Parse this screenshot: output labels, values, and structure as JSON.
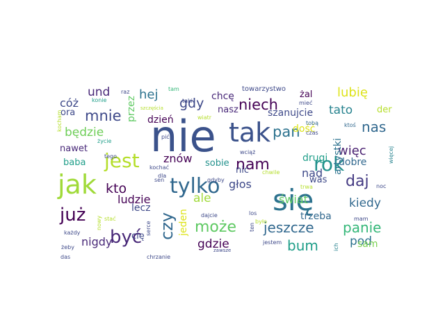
{
  "words": [
    {
      "text": "nie",
      "color": "#3b528b"
    },
    {
      "text": "się",
      "color": "#2c728e"
    },
    {
      "text": "tak",
      "color": "#3b528b"
    },
    {
      "text": "jak",
      "color": "#a0da39"
    },
    {
      "text": "rok",
      "color": "#21918c"
    },
    {
      "text": "tylko",
      "color": "#31688e"
    },
    {
      "text": "nam",
      "color": "#440154"
    },
    {
      "text": "jest",
      "color": "#b5de2b"
    },
    {
      "text": "już",
      "color": "#440154"
    },
    {
      "text": "być",
      "color": "#482878"
    },
    {
      "text": "może",
      "color": "#5ec962"
    },
    {
      "text": "czy",
      "color": "#31688e"
    },
    {
      "text": "niech",
      "color": "#440154"
    },
    {
      "text": "mnie",
      "color": "#3e4989"
    },
    {
      "text": "daj",
      "color": "#443a83"
    },
    {
      "text": "panie",
      "color": "#35b779"
    },
    {
      "text": "jeszcze",
      "color": "#31688e"
    },
    {
      "text": "bum",
      "color": "#1f9e89"
    },
    {
      "text": "pan",
      "color": "#2c728e"
    },
    {
      "text": "kto",
      "color": "#440154"
    },
    {
      "text": "nas",
      "color": "#31688e"
    },
    {
      "text": "lubię",
      "color": "#dde318"
    },
    {
      "text": "gdy",
      "color": "#3e4989"
    },
    {
      "text": "hej",
      "color": "#2c728e"
    },
    {
      "text": "und",
      "color": "#482878"
    },
    {
      "text": "tato",
      "color": "#26828e"
    },
    {
      "text": "głos",
      "color": "#3e4989"
    },
    {
      "text": "świat",
      "color": "#5ec962"
    },
    {
      "text": "kiedy",
      "color": "#31688e"
    },
    {
      "text": "gdzie",
      "color": "#440154"
    },
    {
      "text": "pod",
      "color": "#2c728e"
    },
    {
      "text": "ludzie",
      "color": "#440154"
    },
    {
      "text": "nigdy",
      "color": "#482878"
    },
    {
      "text": "ale",
      "color": "#a0da39"
    },
    {
      "text": "więc",
      "color": "#481f70"
    },
    {
      "text": "będzie",
      "color": "#6ece58"
    },
    {
      "text": "znów",
      "color": "#440154"
    },
    {
      "text": "cóż",
      "color": "#3e4989"
    },
    {
      "text": "chcę",
      "color": "#482878"
    },
    {
      "text": "nad",
      "color": "#3e4989"
    },
    {
      "text": "sam",
      "color": "#7ad151"
    },
    {
      "text": "dobre",
      "color": "#31688e"
    },
    {
      "text": "szanujcie",
      "color": "#3e4989"
    },
    {
      "text": "jeden",
      "color": "#dde318"
    },
    {
      "text": "dzień",
      "color": "#440154"
    },
    {
      "text": "lecz",
      "color": "#3e4989"
    },
    {
      "text": "żal",
      "color": "#440154"
    },
    {
      "text": "nasz",
      "color": "#482878"
    },
    {
      "text": "drugi",
      "color": "#1f9e89"
    },
    {
      "text": "artystki",
      "color": "#2c728e"
    },
    {
      "text": "trzeba",
      "color": "#31688e"
    },
    {
      "text": "przez",
      "color": "#5ec962"
    },
    {
      "text": "dość",
      "color": "#dde318"
    },
    {
      "text": "nawet",
      "color": "#482878"
    },
    {
      "text": "baba",
      "color": "#1f9e89"
    },
    {
      "text": "sobie",
      "color": "#21918c"
    },
    {
      "text": "ora",
      "color": "#3e4989"
    },
    {
      "text": "nic",
      "color": "#3e4989"
    },
    {
      "text": "der",
      "color": "#b5de2b"
    },
    {
      "text": "was",
      "color": "#3e4989"
    },
    {
      "text": "cię",
      "color": "#3e4989"
    },
    {
      "text": "towarzystwo",
      "color": "#3e4989"
    },
    {
      "text": "kocham",
      "color": "#b5de2b"
    },
    {
      "text": "raz",
      "color": "#3e4989"
    },
    {
      "text": "konie",
      "color": "#1f9e89"
    },
    {
      "text": "tam",
      "color": "#35b779"
    },
    {
      "text": "taki",
      "color": "#3e4989"
    },
    {
      "text": "szczęścia",
      "color": "#b5de2b"
    },
    {
      "text": "wiatr",
      "color": "#b5de2b"
    },
    {
      "text": "mieć",
      "color": "#3e4989"
    },
    {
      "text": "tobą",
      "color": "#31688e"
    },
    {
      "text": "ktoś",
      "color": "#31688e"
    },
    {
      "text": "czas",
      "color": "#3e4989"
    },
    {
      "text": "pić",
      "color": "#3e4989"
    },
    {
      "text": "życie",
      "color": "#1f9e89"
    },
    {
      "text": "tego",
      "color": "#3e4989"
    },
    {
      "text": "kochać",
      "color": "#3e4989"
    },
    {
      "text": "dla",
      "color": "#3e4989"
    },
    {
      "text": "sen",
      "color": "#3e4989"
    },
    {
      "text": "gdyby",
      "color": "#3e4989"
    },
    {
      "text": "wciąż",
      "color": "#3e4989"
    },
    {
      "text": "chwile",
      "color": "#b5de2b"
    },
    {
      "text": "trwa",
      "color": "#b5de2b"
    },
    {
      "text": "więcej",
      "color": "#26828e"
    },
    {
      "text": "noc",
      "color": "#3e4989"
    },
    {
      "text": "mam",
      "color": "#3e4989"
    },
    {
      "text": "każdy",
      "color": "#3e4989"
    },
    {
      "text": "stać",
      "color": "#b5de2b"
    },
    {
      "text": "nowy",
      "color": "#b5de2b"
    },
    {
      "text": "serce",
      "color": "#3e4989"
    },
    {
      "text": "dajcie",
      "color": "#3e4989"
    },
    {
      "text": "los",
      "color": "#3e4989"
    },
    {
      "text": "ten",
      "color": "#3e4989"
    },
    {
      "text": "było",
      "color": "#b5de2b"
    },
    {
      "text": "ich",
      "color": "#26828e"
    },
    {
      "text": "żeby",
      "color": "#3e4989"
    },
    {
      "text": "das",
      "color": "#3e4989"
    },
    {
      "text": "chrzanie",
      "color": "#3e4989"
    },
    {
      "text": "zawsze",
      "color": "#3e4989"
    },
    {
      "text": "jestem",
      "color": "#3e4989"
    }
  ]
}
